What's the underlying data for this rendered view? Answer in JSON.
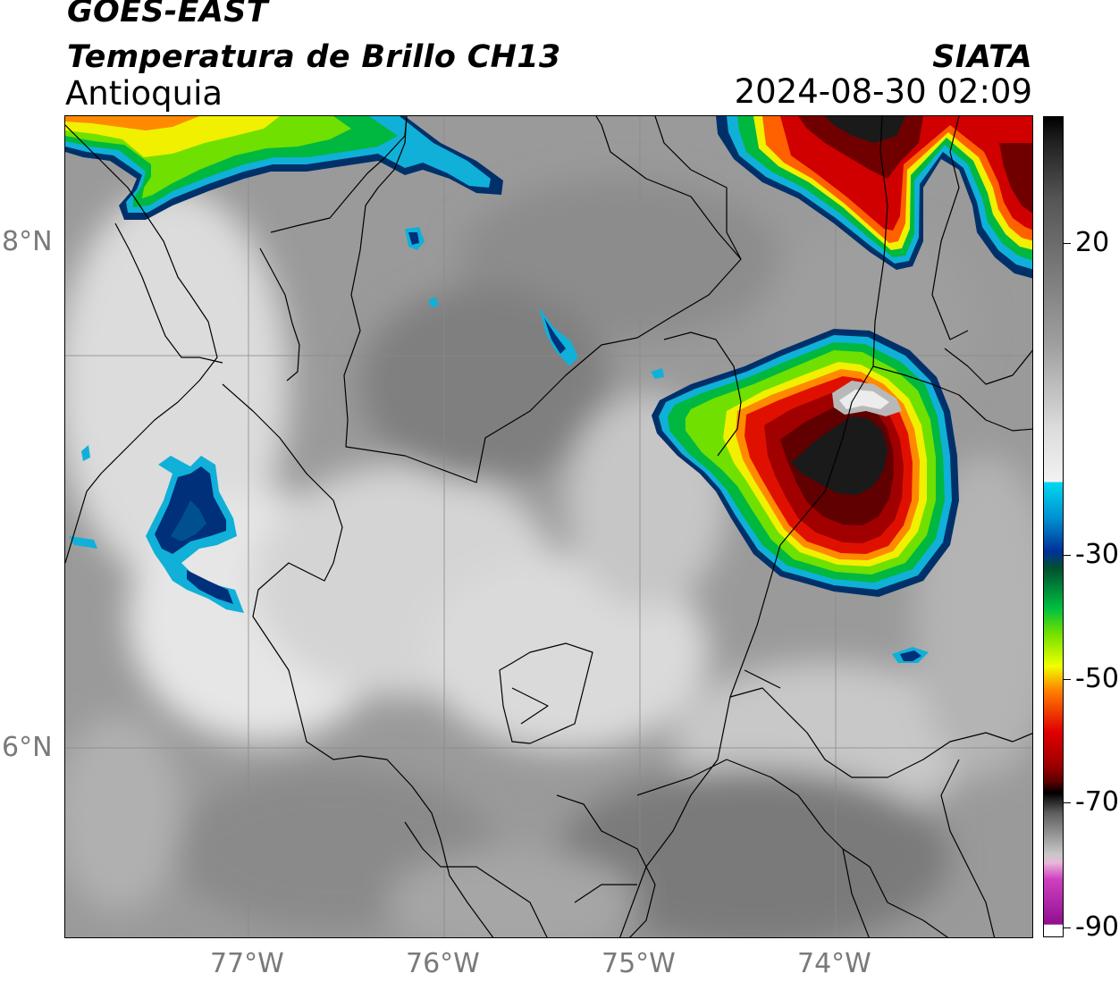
{
  "header": {
    "product": "GOES-EAST",
    "product_name": "Temperatura de Brillo CH13",
    "region": "Antioquia",
    "organization": "SIATA",
    "datetime": "2024-08-30 02:09"
  },
  "map": {
    "lat_labels": [
      "8°N",
      "6°N"
    ],
    "lon_labels": [
      "77°W",
      "76°W",
      "75°W",
      "74°W"
    ],
    "extent": {
      "lon_min": -77.93,
      "lon_max": -72.98,
      "lat_min": 4.95,
      "lat_max": 9.2
    },
    "gridlines": {
      "lons": [
        -77,
        -76,
        -75,
        -74
      ],
      "lats": [
        8,
        6
      ]
    },
    "features": [
      {
        "id": "storm-main",
        "label": "cold cloud top",
        "center_lon": -74.05,
        "center_lat": 7.6,
        "min_temp_c": -80
      },
      {
        "id": "storm-northeast",
        "label": "cold cloud top",
        "center_lon": -73.6,
        "center_lat": 8.95,
        "min_temp_c": -70
      },
      {
        "id": "storm-northwest",
        "label": "cold cloud top",
        "center_lon": -76.5,
        "center_lat": 9.1,
        "min_temp_c": -40
      },
      {
        "id": "cell-west",
        "label": "cold cloud top",
        "center_lon": -77.35,
        "center_lat": 7.1,
        "min_temp_c": -33
      },
      {
        "id": "cell-east-small",
        "label": "cold cloud top",
        "center_lon": -73.5,
        "center_lat": 6.5,
        "min_temp_c": -30
      }
    ]
  },
  "colorbar": {
    "labels": [
      "20",
      "-30",
      "-50",
      "-70",
      "-90"
    ],
    "label_values": [
      20,
      -30,
      -50,
      -70,
      -90
    ],
    "range": [
      -90,
      40
    ],
    "colors": {
      "warm_gray": "#555555",
      "near_white": "#f2f2f2",
      "cyan": "#00d8f0",
      "blue": "#00309a",
      "green": "#00c040",
      "yellow": "#f0ff00",
      "orange": "#ff8000",
      "red": "#e00000",
      "dark_red": "#600000",
      "black": "#000000",
      "magenta": "#d040c0",
      "purple": "#901090"
    }
  }
}
